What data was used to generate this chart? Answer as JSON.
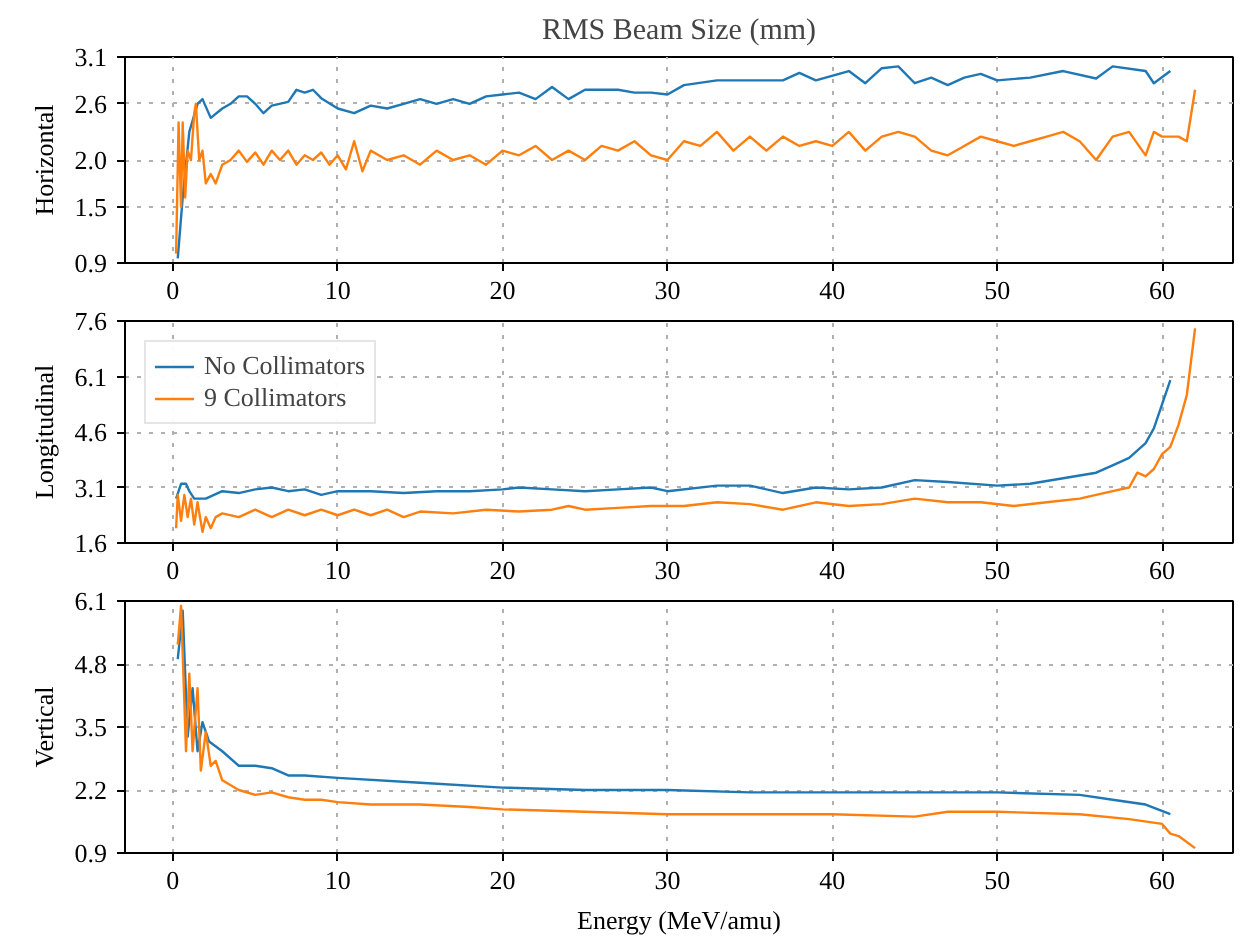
{
  "chart_data": [
    {
      "type": "line",
      "title": "RMS Beam Size (mm)",
      "ylabel": "Horizontal",
      "xlim": [
        -2.9,
        64.3
      ],
      "xticks": [
        0,
        10,
        20,
        30,
        40,
        50,
        60
      ],
      "ylim": [
        0.9,
        3.1
      ],
      "yticks": [
        0.9,
        1.5,
        {
          "value": 2.0,
          "label": "2.0"
        },
        2.6,
        3.1
      ],
      "grid": true,
      "series": [
        {
          "color": "#1f77b4",
          "x": [
            0.3,
            0.6,
            1.0,
            1.5,
            1.8,
            2.3,
            3,
            3.5,
            4,
            4.5,
            5,
            5.5,
            6,
            7,
            7.5,
            8,
            8.5,
            9,
            10,
            11,
            12,
            13,
            14,
            15,
            16,
            17,
            18,
            19,
            20,
            21,
            22,
            23,
            24,
            25,
            27,
            28,
            29,
            30,
            31,
            33,
            35,
            37,
            38,
            39,
            41,
            42,
            43,
            44,
            45,
            46,
            47,
            48,
            49,
            50,
            52,
            54,
            56,
            57,
            59,
            59.5,
            60.5
          ],
          "values": [
            0.95,
            1.6,
            2.3,
            2.6,
            2.65,
            2.45,
            2.55,
            2.6,
            2.68,
            2.68,
            2.6,
            2.5,
            2.58,
            2.62,
            2.75,
            2.72,
            2.75,
            2.66,
            2.55,
            2.5,
            2.58,
            2.55,
            2.6,
            2.65,
            2.6,
            2.65,
            2.6,
            2.68,
            2.7,
            2.72,
            2.65,
            2.78,
            2.65,
            2.75,
            2.75,
            2.72,
            2.72,
            2.7,
            2.8,
            2.85,
            2.85,
            2.85,
            2.93,
            2.85,
            2.95,
            2.82,
            2.98,
            3.0,
            2.82,
            2.88,
            2.8,
            2.88,
            2.92,
            2.85,
            2.88,
            2.95,
            2.87,
            3.0,
            2.95,
            2.82,
            2.95
          ]
        },
        {
          "color": "#ff7f0e",
          "x": [
            0.2,
            0.35,
            0.5,
            0.6,
            0.75,
            0.9,
            1.1,
            1.3,
            1.4,
            1.6,
            1.8,
            2.0,
            2.3,
            2.6,
            3.0,
            3.5,
            4.0,
            4.5,
            5.0,
            5.5,
            6.0,
            6.5,
            7.0,
            7.5,
            8.0,
            8.5,
            9.0,
            9.5,
            10,
            10.5,
            11,
            11.5,
            12,
            13,
            14,
            15,
            16,
            17,
            18,
            19,
            20,
            21,
            22,
            23,
            24,
            25,
            26,
            27,
            28,
            29,
            30,
            31,
            32,
            33,
            34,
            35,
            36,
            37,
            38,
            39,
            40,
            41,
            42,
            43,
            44,
            45,
            46,
            47,
            48,
            49,
            50,
            51,
            52,
            53,
            54,
            55,
            56,
            57,
            58,
            59,
            59.5,
            60,
            61,
            61.5,
            62
          ],
          "values": [
            1.0,
            2.4,
            1.5,
            2.4,
            1.6,
            2.1,
            2.0,
            2.5,
            2.6,
            2.0,
            2.1,
            1.75,
            1.85,
            1.75,
            1.95,
            2.0,
            2.1,
            1.98,
            2.08,
            1.95,
            2.1,
            2.0,
            2.1,
            1.95,
            2.05,
            2.0,
            2.08,
            1.95,
            2.05,
            1.9,
            2.2,
            1.88,
            2.1,
            2.0,
            2.05,
            1.95,
            2.1,
            2.0,
            2.05,
            1.95,
            2.1,
            2.05,
            2.15,
            2.0,
            2.1,
            2.0,
            2.15,
            2.1,
            2.2,
            2.05,
            2.0,
            2.2,
            2.15,
            2.3,
            2.1,
            2.25,
            2.1,
            2.25,
            2.15,
            2.2,
            2.15,
            2.3,
            2.1,
            2.25,
            2.3,
            2.25,
            2.1,
            2.05,
            2.15,
            2.25,
            2.2,
            2.15,
            2.2,
            2.25,
            2.3,
            2.2,
            2.0,
            2.25,
            2.3,
            2.05,
            2.3,
            2.25,
            2.25,
            2.2,
            2.75
          ]
        }
      ]
    },
    {
      "type": "line",
      "ylabel": "Longitudinal",
      "xlim": [
        -2.9,
        64.3
      ],
      "xticks": [
        0,
        10,
        20,
        30,
        40,
        50,
        60
      ],
      "ylim": [
        1.6,
        7.6
      ],
      "yticks": [
        1.6,
        3.1,
        4.6,
        6.1,
        7.6
      ],
      "grid": true,
      "legend": "top left",
      "series": [
        {
          "name": "No Collimators",
          "color": "#1f77b4",
          "x": [
            0.2,
            0.5,
            0.8,
            1.0,
            1.3,
            2,
            3,
            4,
            5,
            6,
            7,
            8,
            9,
            10,
            12,
            14,
            16,
            18,
            20,
            21,
            23,
            25,
            27,
            29,
            30,
            33,
            35,
            37,
            39,
            41,
            43,
            45,
            47,
            50,
            52,
            54,
            56,
            57,
            58,
            59,
            59.5,
            60.5
          ],
          "values": [
            2.8,
            3.2,
            3.2,
            3.0,
            2.8,
            2.8,
            3.0,
            2.95,
            3.05,
            3.1,
            3.0,
            3.05,
            2.9,
            3.0,
            3.0,
            2.95,
            3.0,
            3.0,
            3.05,
            3.1,
            3.05,
            3.0,
            3.05,
            3.1,
            3.0,
            3.15,
            3.15,
            2.95,
            3.1,
            3.05,
            3.1,
            3.3,
            3.25,
            3.15,
            3.2,
            3.35,
            3.5,
            3.7,
            3.9,
            4.3,
            4.7,
            6.0
          ]
        },
        {
          "name": "9 Collimators",
          "color": "#ff7f0e",
          "x": [
            0.2,
            0.3,
            0.5,
            0.7,
            0.9,
            1.1,
            1.3,
            1.5,
            1.8,
            2.0,
            2.3,
            2.6,
            3,
            4,
            5,
            6,
            7,
            8,
            9,
            10,
            11,
            12,
            13,
            14,
            15,
            17,
            19,
            21,
            23,
            24,
            25,
            27,
            29,
            31,
            33,
            35,
            37,
            39,
            41,
            43,
            45,
            47,
            49,
            51,
            53,
            55,
            57,
            58,
            58.5,
            59,
            59.5,
            60,
            60.5,
            61,
            61.5,
            62
          ],
          "values": [
            2.0,
            2.9,
            2.2,
            2.9,
            2.3,
            2.8,
            2.1,
            2.7,
            1.9,
            2.3,
            2.0,
            2.3,
            2.4,
            2.3,
            2.5,
            2.3,
            2.5,
            2.35,
            2.5,
            2.35,
            2.5,
            2.35,
            2.5,
            2.3,
            2.45,
            2.4,
            2.5,
            2.45,
            2.5,
            2.6,
            2.5,
            2.55,
            2.6,
            2.6,
            2.7,
            2.65,
            2.5,
            2.7,
            2.6,
            2.65,
            2.8,
            2.7,
            2.7,
            2.6,
            2.7,
            2.8,
            3.0,
            3.1,
            3.5,
            3.4,
            3.6,
            4.0,
            4.2,
            4.8,
            5.6,
            7.4
          ]
        }
      ]
    },
    {
      "type": "line",
      "ylabel": "Vertical",
      "xlabel": "Energy (MeV/amu)",
      "xlim": [
        -2.9,
        64.3
      ],
      "xticks": [
        0,
        10,
        20,
        30,
        40,
        50,
        60
      ],
      "ylim": [
        0.9,
        6.1
      ],
      "yticks": [
        0.9,
        2.2,
        3.5,
        4.8,
        6.1
      ],
      "grid": true,
      "series": [
        {
          "color": "#1f77b4",
          "x": [
            0.3,
            0.6,
            0.9,
            1.2,
            1.5,
            1.8,
            2.2,
            3,
            4,
            5,
            6,
            7,
            8,
            10,
            15,
            20,
            25,
            30,
            35,
            40,
            45,
            50,
            55,
            57,
            59,
            60.5
          ],
          "values": [
            4.9,
            5.9,
            3.3,
            4.3,
            3.0,
            3.6,
            3.2,
            3.0,
            2.7,
            2.7,
            2.65,
            2.5,
            2.5,
            2.45,
            2.35,
            2.25,
            2.2,
            2.2,
            2.15,
            2.15,
            2.15,
            2.15,
            2.1,
            2.0,
            1.9,
            1.7
          ]
        },
        {
          "color": "#ff7f0e",
          "x": [
            0.3,
            0.5,
            0.8,
            1.0,
            1.2,
            1.5,
            1.7,
            2.0,
            2.3,
            2.6,
            3,
            4,
            5,
            6,
            7,
            8,
            9,
            10,
            12,
            15,
            18,
            20,
            25,
            30,
            35,
            40,
            45,
            47,
            50,
            55,
            58,
            60,
            60.5,
            61,
            62
          ],
          "values": [
            5.2,
            6.0,
            3.0,
            4.6,
            3.0,
            4.3,
            2.6,
            3.4,
            2.7,
            2.8,
            2.4,
            2.2,
            2.1,
            2.15,
            2.05,
            2.0,
            2.0,
            1.95,
            1.9,
            1.9,
            1.85,
            1.8,
            1.75,
            1.7,
            1.7,
            1.7,
            1.65,
            1.75,
            1.75,
            1.7,
            1.6,
            1.5,
            1.3,
            1.25,
            1.0
          ]
        }
      ]
    }
  ]
}
